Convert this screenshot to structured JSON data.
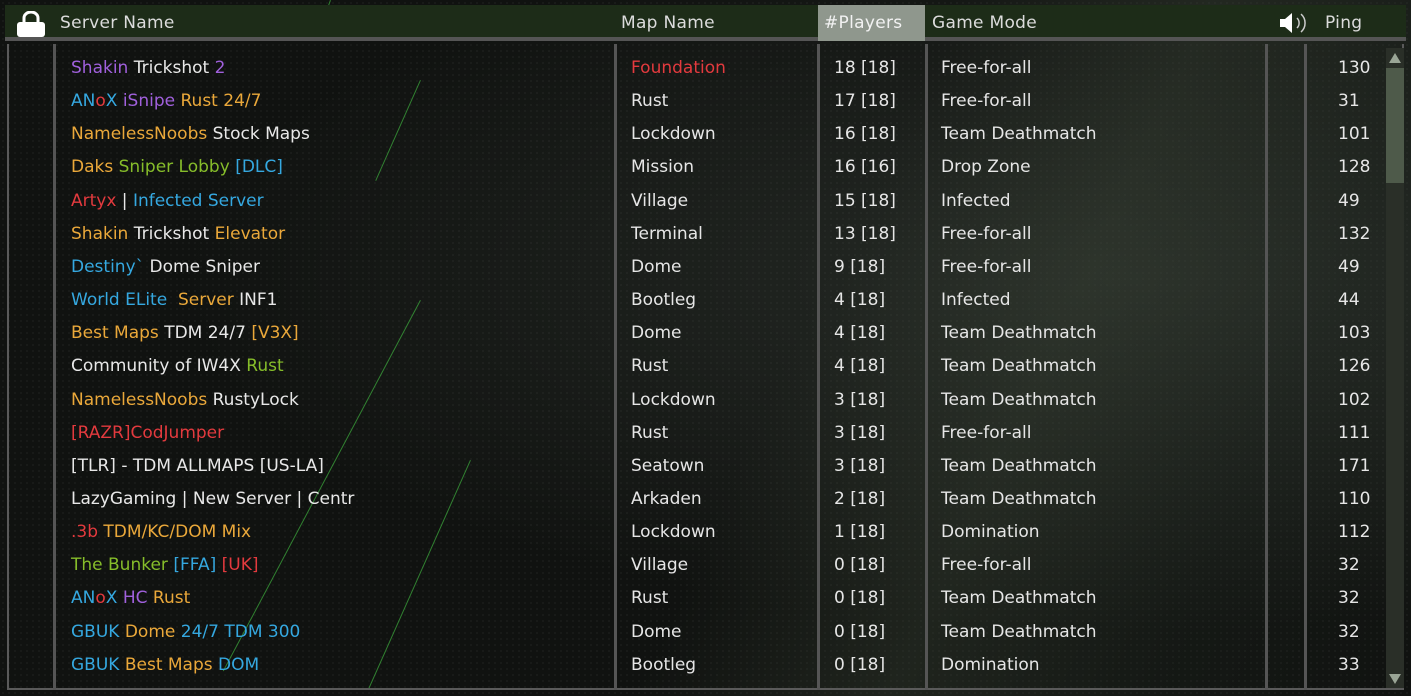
{
  "colors": {
    "purple": "#a060dc",
    "blue": "#35a8e0",
    "orange": "#eaa83a",
    "green": "#86bd2a",
    "red": "#e33a3e",
    "white": "#e8e8e8",
    "header_bg": "#1d2c18",
    "sorted_header_bg": "#8f978d"
  },
  "header": {
    "lock_icon": "lock-icon",
    "server_name": "Server Name",
    "map_name": "Map Name",
    "players": "#Players",
    "game_mode": "Game Mode",
    "voice_icon": "speaker-icon",
    "ping": "Ping"
  },
  "rows": [
    {
      "name": [
        [
          "Shakin ",
          "purple"
        ],
        [
          "Trickshot ",
          "white"
        ],
        [
          "2",
          "purple"
        ]
      ],
      "map": "Foundation",
      "map_color": "red",
      "players": "18 [18]",
      "mode": "Free-for-all",
      "ping": "130"
    },
    {
      "name": [
        [
          "AN",
          "blue"
        ],
        [
          "o",
          "red"
        ],
        [
          "X ",
          "blue"
        ],
        [
          "iSnipe ",
          "purple"
        ],
        [
          "Rust 24/7",
          "orange"
        ]
      ],
      "map": "Rust",
      "players": "17 [18]",
      "mode": "Free-for-all",
      "ping": "31"
    },
    {
      "name": [
        [
          "NamelessNoobs ",
          "orange"
        ],
        [
          "Stock Maps",
          "white"
        ]
      ],
      "map": "Lockdown",
      "players": "16 [18]",
      "mode": "Team Deathmatch",
      "ping": "101"
    },
    {
      "name": [
        [
          "Daks ",
          "orange"
        ],
        [
          "Sniper Lobby ",
          "green"
        ],
        [
          "[DLC]",
          "blue"
        ]
      ],
      "map": "Mission",
      "players": "16 [16]",
      "mode": "Drop Zone",
      "ping": "128"
    },
    {
      "name": [
        [
          "Artyx",
          "red"
        ],
        [
          " | ",
          "white"
        ],
        [
          "Infected Server",
          "blue"
        ]
      ],
      "map": "Village",
      "players": "15 [18]",
      "mode": "Infected",
      "ping": "49"
    },
    {
      "name": [
        [
          "Shakin ",
          "orange"
        ],
        [
          "Trickshot ",
          "white"
        ],
        [
          "Elevator",
          "orange"
        ]
      ],
      "map": "Terminal",
      "players": "13 [18]",
      "mode": "Free-for-all",
      "ping": "132"
    },
    {
      "name": [
        [
          "Destiny` ",
          "blue"
        ],
        [
          "Dome Sniper",
          "white"
        ]
      ],
      "map": "Dome",
      "players": "9 [18]",
      "mode": "Free-for-all",
      "ping": "49"
    },
    {
      "name": [
        [
          "World ELite  ",
          "blue"
        ],
        [
          "Server ",
          "orange"
        ],
        [
          "INF1",
          "white"
        ]
      ],
      "map": "Bootleg",
      "players": "4 [18]",
      "mode": "Infected",
      "ping": "44"
    },
    {
      "name": [
        [
          "Best Maps ",
          "orange"
        ],
        [
          "TDM 24/7 ",
          "white"
        ],
        [
          "[V3X]",
          "orange"
        ]
      ],
      "map": "Dome",
      "players": "4 [18]",
      "mode": "Team Deathmatch",
      "ping": "103"
    },
    {
      "name": [
        [
          "Community of IW4X ",
          "white"
        ],
        [
          "Rust",
          "green"
        ]
      ],
      "map": "Rust",
      "players": "4 [18]",
      "mode": "Team Deathmatch",
      "ping": "126"
    },
    {
      "name": [
        [
          "NamelessNoobs ",
          "orange"
        ],
        [
          "RustyLock",
          "white"
        ]
      ],
      "map": "Lockdown",
      "players": "3 [18]",
      "mode": "Team Deathmatch",
      "ping": "102"
    },
    {
      "name": [
        [
          "[RAZR]CodJumper",
          "red"
        ]
      ],
      "map": "Rust",
      "players": "3 [18]",
      "mode": "Free-for-all",
      "ping": "111"
    },
    {
      "name": [
        [
          "[TLR] - TDM ALLMAPS [US-LA]",
          "white"
        ]
      ],
      "map": "Seatown",
      "players": "3 [18]",
      "mode": "Team Deathmatch",
      "ping": "171"
    },
    {
      "name": [
        [
          "LazyGaming | New Server | Centr",
          "white"
        ]
      ],
      "map": "Arkaden",
      "players": "2 [18]",
      "mode": "Team Deathmatch",
      "ping": "110"
    },
    {
      "name": [
        [
          ".3b ",
          "red"
        ],
        [
          "TDM/KC/DOM Mix",
          "orange"
        ]
      ],
      "map": "Lockdown",
      "players": "1 [18]",
      "mode": "Domination",
      "ping": "112"
    },
    {
      "name": [
        [
          "The Bunker ",
          "green"
        ],
        [
          "[FFA] ",
          "blue"
        ],
        [
          "[UK]",
          "red"
        ]
      ],
      "map": "Village",
      "players": "0 [18]",
      "mode": "Free-for-all",
      "ping": "32"
    },
    {
      "name": [
        [
          "AN",
          "blue"
        ],
        [
          "o",
          "red"
        ],
        [
          "X ",
          "blue"
        ],
        [
          "HC ",
          "purple"
        ],
        [
          "Rust",
          "orange"
        ]
      ],
      "map": "Rust",
      "players": "0 [18]",
      "mode": "Team Deathmatch",
      "ping": "32"
    },
    {
      "name": [
        [
          "GBUK ",
          "blue"
        ],
        [
          "Dome ",
          "orange"
        ],
        [
          "24/7 TDM 300",
          "blue"
        ]
      ],
      "map": "Dome",
      "players": "0 [18]",
      "mode": "Team Deathmatch",
      "ping": "32"
    },
    {
      "name": [
        [
          "GBUK ",
          "blue"
        ],
        [
          "Best Maps ",
          "orange"
        ],
        [
          "DOM",
          "blue"
        ]
      ],
      "map": "Bootleg",
      "players": "0 [18]",
      "mode": "Domination",
      "ping": "33"
    }
  ]
}
